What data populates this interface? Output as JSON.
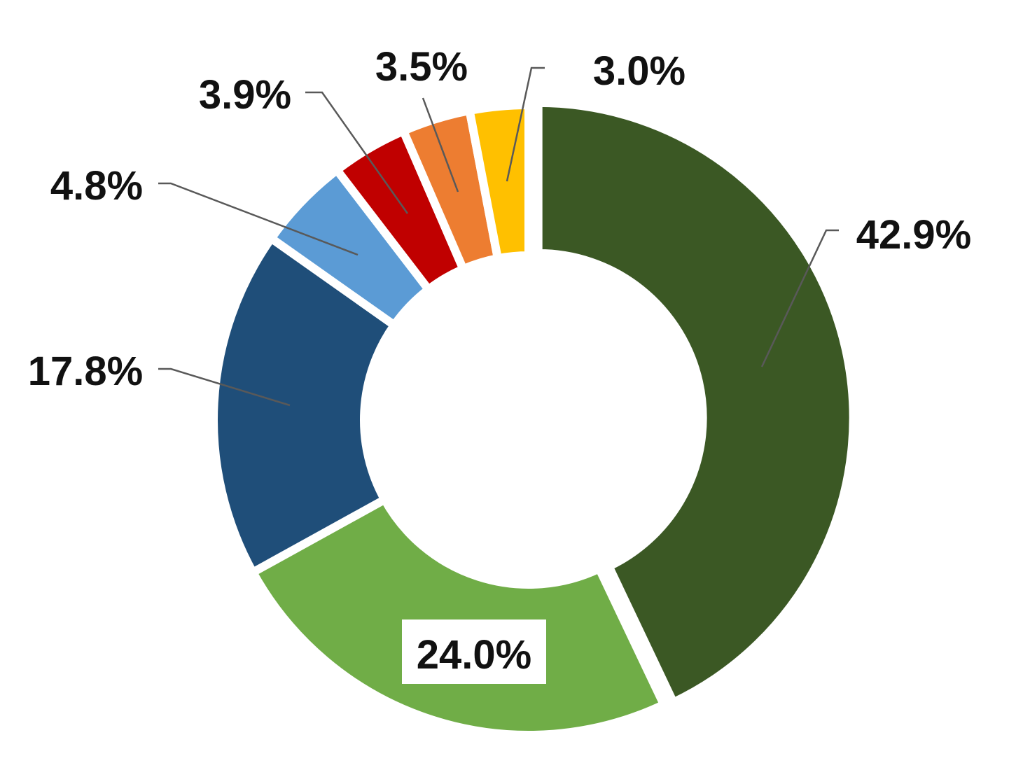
{
  "chart_data": {
    "type": "pie",
    "variant": "donut",
    "title": "",
    "slices": [
      {
        "value": 42.9,
        "label": "42.9%",
        "color": "#3B5824"
      },
      {
        "value": 24.0,
        "label": "24.0%",
        "color": "#70AD47"
      },
      {
        "value": 17.8,
        "label": "17.8%",
        "color": "#1F4E79"
      },
      {
        "value": 4.8,
        "label": "4.8%",
        "color": "#5B9BD5"
      },
      {
        "value": 3.9,
        "label": "3.9%",
        "color": "#C00000"
      },
      {
        "value": 3.5,
        "label": "3.5%",
        "color": "#ED7D31"
      },
      {
        "value": 3.0,
        "label": "3.0%",
        "color": "#FFC000"
      }
    ],
    "legend": "none"
  }
}
